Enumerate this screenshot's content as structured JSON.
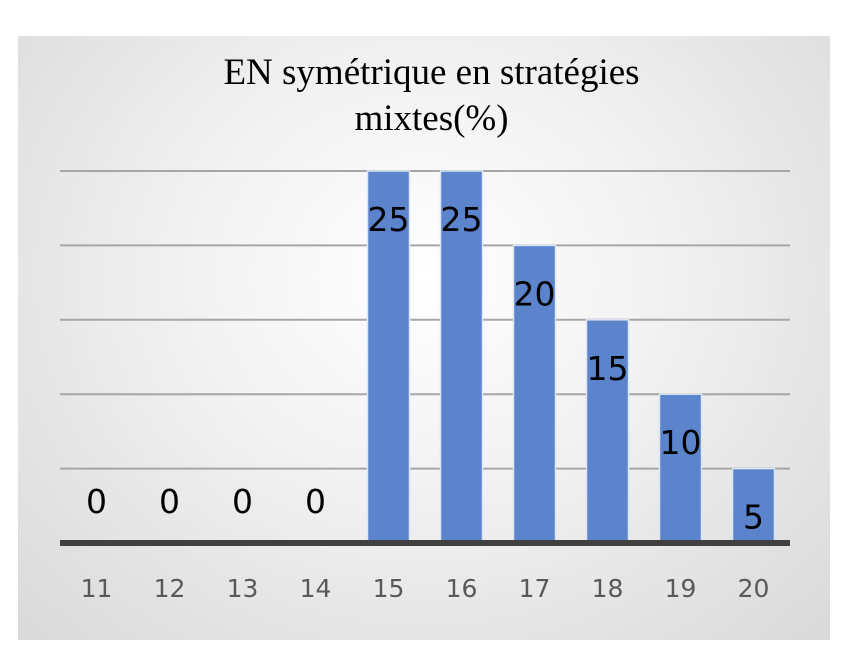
{
  "chart_data": {
    "type": "bar",
    "title_lines": [
      "EN symétrique en stratégies",
      "mixtes(%)"
    ],
    "categories": [
      "11",
      "12",
      "13",
      "14",
      "15",
      "16",
      "17",
      "18",
      "19",
      "20"
    ],
    "values": [
      0,
      0,
      0,
      0,
      25,
      25,
      20,
      15,
      10,
      5
    ],
    "ylim": [
      0,
      25
    ],
    "grid": true,
    "bar_color": "#5b84cc",
    "axis_color": "#404040",
    "grid_color": "#a6a6a6"
  }
}
